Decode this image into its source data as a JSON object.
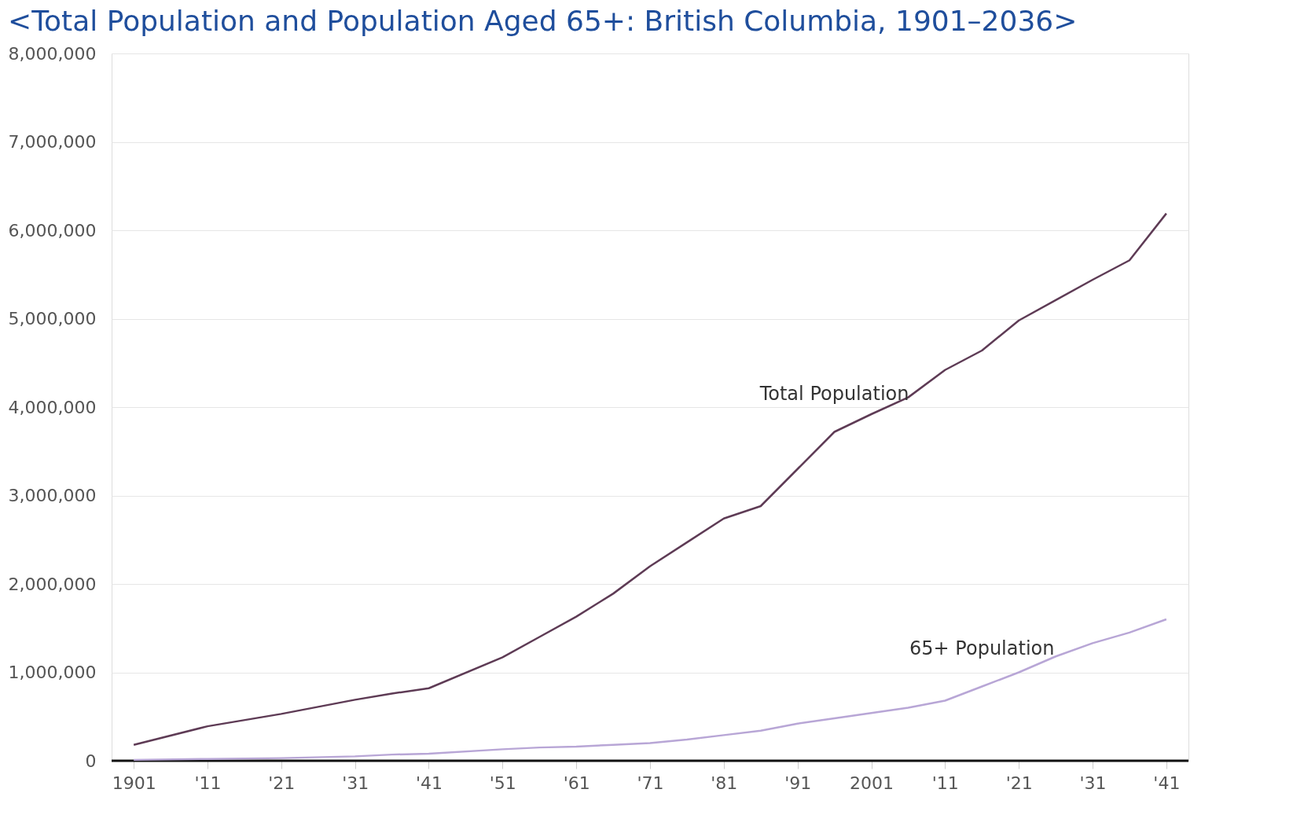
{
  "chart_data": {
    "type": "line",
    "title": "<Total Population and Population Aged 65+: British Columbia, 1901–2036>",
    "x": [
      1901,
      1911,
      1921,
      1931,
      1936,
      1941,
      1951,
      1956,
      1961,
      1966,
      1971,
      1976,
      1981,
      1986,
      1991,
      1996,
      2001,
      2006,
      2011,
      2016,
      2021,
      2026,
      2031,
      2036,
      2041
    ],
    "series": [
      {
        "name": "Total Population",
        "color": "#5e3b55",
        "values": [
          180000,
          390000,
          530000,
          690000,
          760000,
          820000,
          1170000,
          1400000,
          1630000,
          1890000,
          2200000,
          2470000,
          2740000,
          2880000,
          3300000,
          3720000,
          3920000,
          4110000,
          4420000,
          4640000,
          4980000,
          5210000,
          5440000,
          5660000,
          6190000
        ]
      },
      {
        "name": "65+ Population",
        "color": "#b8a6d6",
        "values": [
          10000,
          20000,
          30000,
          50000,
          70000,
          80000,
          130000,
          150000,
          160000,
          180000,
          200000,
          240000,
          290000,
          340000,
          420000,
          480000,
          540000,
          600000,
          680000,
          840000,
          1000000,
          1180000,
          1330000,
          1450000,
          1600000
        ]
      }
    ],
    "xlim": [
      1898,
      2044
    ],
    "xticks": [
      {
        "value": 1901,
        "label": "1901"
      },
      {
        "value": 1911,
        "label": "'11"
      },
      {
        "value": 1921,
        "label": "'21"
      },
      {
        "value": 1931,
        "label": "'31"
      },
      {
        "value": 1941,
        "label": "'41"
      },
      {
        "value": 1951,
        "label": "'51"
      },
      {
        "value": 1961,
        "label": "'61"
      },
      {
        "value": 1971,
        "label": "'71"
      },
      {
        "value": 1981,
        "label": "'81"
      },
      {
        "value": 1991,
        "label": "'91"
      },
      {
        "value": 2001,
        "label": "2001"
      },
      {
        "value": 2011,
        "label": "'11"
      },
      {
        "value": 2021,
        "label": "'21"
      },
      {
        "value": 2031,
        "label": "'31"
      },
      {
        "value": 2041,
        "label": "'41"
      }
    ],
    "ylim": [
      0,
      8000000
    ],
    "yticks": [
      {
        "value": 0,
        "label": "0"
      },
      {
        "value": 1000000,
        "label": "1,000,000"
      },
      {
        "value": 2000000,
        "label": "2,000,000"
      },
      {
        "value": 3000000,
        "label": "3,000,000"
      },
      {
        "value": 4000000,
        "label": "4,000,000"
      },
      {
        "value": 5000000,
        "label": "5,000,000"
      },
      {
        "value": 6000000,
        "label": "6,000,000"
      },
      {
        "value": 7000000,
        "label": "7,000,000"
      },
      {
        "value": 8000000,
        "label": "8,000,000"
      }
    ],
    "grid": "y",
    "legend": false,
    "marker": "none",
    "line_style": "solid"
  }
}
